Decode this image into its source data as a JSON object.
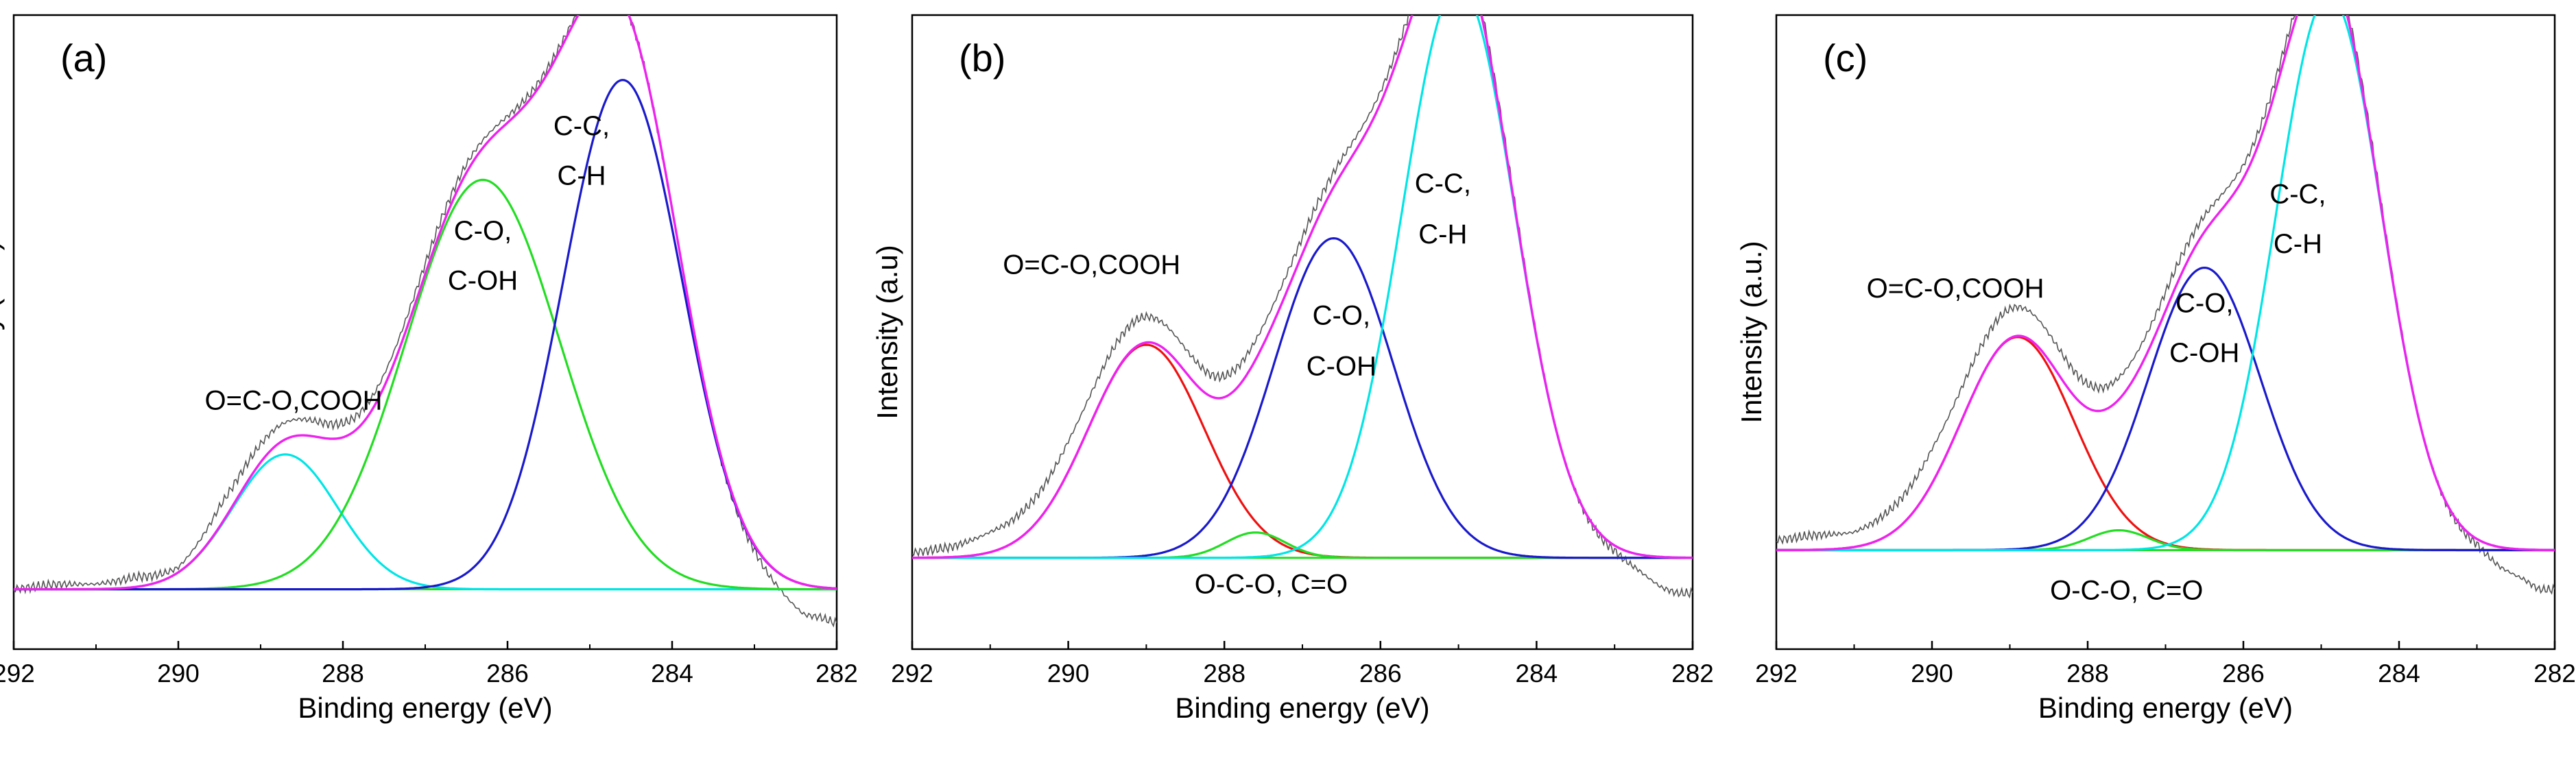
{
  "chart_data": [
    {
      "type": "line",
      "panel_label": "(a)",
      "xlabel": "Binding energy (eV)",
      "ylabel": "Intensity (a.u.)",
      "xlim": [
        292,
        282
      ],
      "x_reversed": true,
      "x_ticks": [
        292,
        290,
        288,
        286,
        284,
        282
      ],
      "ylim": [
        -0.12,
        1.15
      ],
      "baseline": 0,
      "grid": false,
      "legend": "none",
      "series": [
        {
          "label": "O=C-O,COOH",
          "color": "#00e5e5",
          "center": 288.7,
          "height": 0.27,
          "fwhm": 1.5
        },
        {
          "label": "C-O, C-OH",
          "color": "#22dd22",
          "center": 286.3,
          "height": 0.82,
          "fwhm": 2.2
        },
        {
          "label": "C-C, C-H",
          "color": "#1a1acc",
          "center": 284.6,
          "height": 1.02,
          "fwhm": 1.7
        },
        {
          "label": "envelope",
          "color": "#ee22ee"
        },
        {
          "label": "raw",
          "color": "#555555",
          "x": [
            292,
            291.5,
            291,
            290.5,
            290,
            289.5,
            283,
            282.7,
            282.4,
            282.2,
            282
          ],
          "y": [
            0,
            0.01,
            0.01,
            0.02,
            0.01,
            0.04,
            -0.01,
            -0.03,
            -0.06,
            -0.06,
            -0.07
          ]
        }
      ],
      "annotations": [
        {
          "text": "O=C-O,COOH",
          "x": 288.6,
          "y": 0.36
        },
        {
          "text": "C-O,",
          "x": 286.3,
          "y": 0.7
        },
        {
          "text": "C-OH",
          "x": 286.3,
          "y": 0.6
        },
        {
          "text": "C-C,",
          "x": 285.1,
          "y": 0.91
        },
        {
          "text": "C-H",
          "x": 285.1,
          "y": 0.81
        }
      ]
    },
    {
      "type": "line",
      "panel_label": "(b)",
      "xlabel": "Binding energy (eV)",
      "ylabel": "Intensity (a.u)",
      "xlim": [
        292,
        282
      ],
      "x_reversed": true,
      "x_ticks": [
        292,
        290,
        288,
        286,
        284,
        282
      ],
      "ylim": [
        -0.18,
        1.07
      ],
      "baseline": 0,
      "grid": false,
      "legend": "none",
      "series": [
        {
          "label": "O=C-O,COOH",
          "color": "#ee1111",
          "center": 289.0,
          "height": 0.42,
          "fwhm": 1.75
        },
        {
          "label": "O-C-O, C=O",
          "color": "#22dd22",
          "center": 287.6,
          "height": 0.05,
          "fwhm": 0.9
        },
        {
          "label": "C-O, C-OH",
          "color": "#1a1acc",
          "center": 286.6,
          "height": 0.63,
          "fwhm": 1.8
        },
        {
          "label": "C-C, C-H",
          "color": "#00e5e5",
          "center": 285.0,
          "height": 1.13,
          "fwhm": 1.7
        },
        {
          "label": "envelope",
          "color": "#ee22ee"
        },
        {
          "label": "raw",
          "color": "#555555",
          "x": [
            292,
            291.5,
            291,
            290.5,
            290,
            283.5,
            283,
            282.7,
            282.4,
            282.2
          ],
          "y": [
            0.01,
            0.02,
            0.04,
            0.05,
            0.06,
            0.0,
            -0.01,
            -0.03,
            -0.06,
            -0.07
          ]
        }
      ],
      "annotations": [
        {
          "text": "O=C-O,COOH",
          "x": 289.7,
          "y": 0.56
        },
        {
          "text": "C-O,",
          "x": 286.5,
          "y": 0.46
        },
        {
          "text": "C-OH",
          "x": 286.5,
          "y": 0.36
        },
        {
          "text": "C-C,",
          "x": 285.2,
          "y": 0.72
        },
        {
          "text": "C-H",
          "x": 285.2,
          "y": 0.62
        },
        {
          "text": "O-C-O, C=O",
          "x": 287.4,
          "y": -0.07
        }
      ]
    },
    {
      "type": "line",
      "panel_label": "(c)",
      "xlabel": "Binding energy (eV)",
      "ylabel": "Intensity (a.u.)",
      "xlim": [
        292,
        282
      ],
      "x_reversed": true,
      "x_ticks": [
        292,
        290,
        288,
        286,
        284,
        282
      ],
      "ylim": [
        -0.2,
        1.08
      ],
      "baseline": 0,
      "grid": false,
      "legend": "none",
      "series": [
        {
          "label": "O=C-O,COOH",
          "color": "#ee1111",
          "center": 288.9,
          "height": 0.43,
          "fwhm": 1.7
        },
        {
          "label": "O-C-O, C=O",
          "color": "#22dd22",
          "center": 287.6,
          "height": 0.04,
          "fwhm": 0.9
        },
        {
          "label": "C-O, C-OH",
          "color": "#1a1acc",
          "center": 286.5,
          "height": 0.57,
          "fwhm": 1.7
        },
        {
          "label": "C-C, C-H",
          "color": "#00e5e5",
          "center": 284.9,
          "height": 1.12,
          "fwhm": 1.6
        },
        {
          "label": "envelope",
          "color": "#ee22ee"
        },
        {
          "label": "raw",
          "color": "#555555",
          "x": [
            292,
            291.5,
            291,
            290.5,
            290,
            283.5,
            283,
            282.7,
            282.4,
            282.2
          ],
          "y": [
            0.02,
            0.03,
            0.03,
            0.05,
            0.07,
            0.0,
            -0.01,
            -0.04,
            -0.06,
            -0.08
          ]
        }
      ],
      "annotations": [
        {
          "text": "O=C-O,COOH",
          "x": 289.7,
          "y": 0.51
        },
        {
          "text": "C-O,",
          "x": 286.5,
          "y": 0.48
        },
        {
          "text": "C-OH",
          "x": 286.5,
          "y": 0.38
        },
        {
          "text": "C-C,",
          "x": 285.3,
          "y": 0.7
        },
        {
          "text": "C-H",
          "x": 285.3,
          "y": 0.6
        },
        {
          "text": "O-C-O, C=O",
          "x": 287.5,
          "y": -0.1
        }
      ]
    }
  ]
}
